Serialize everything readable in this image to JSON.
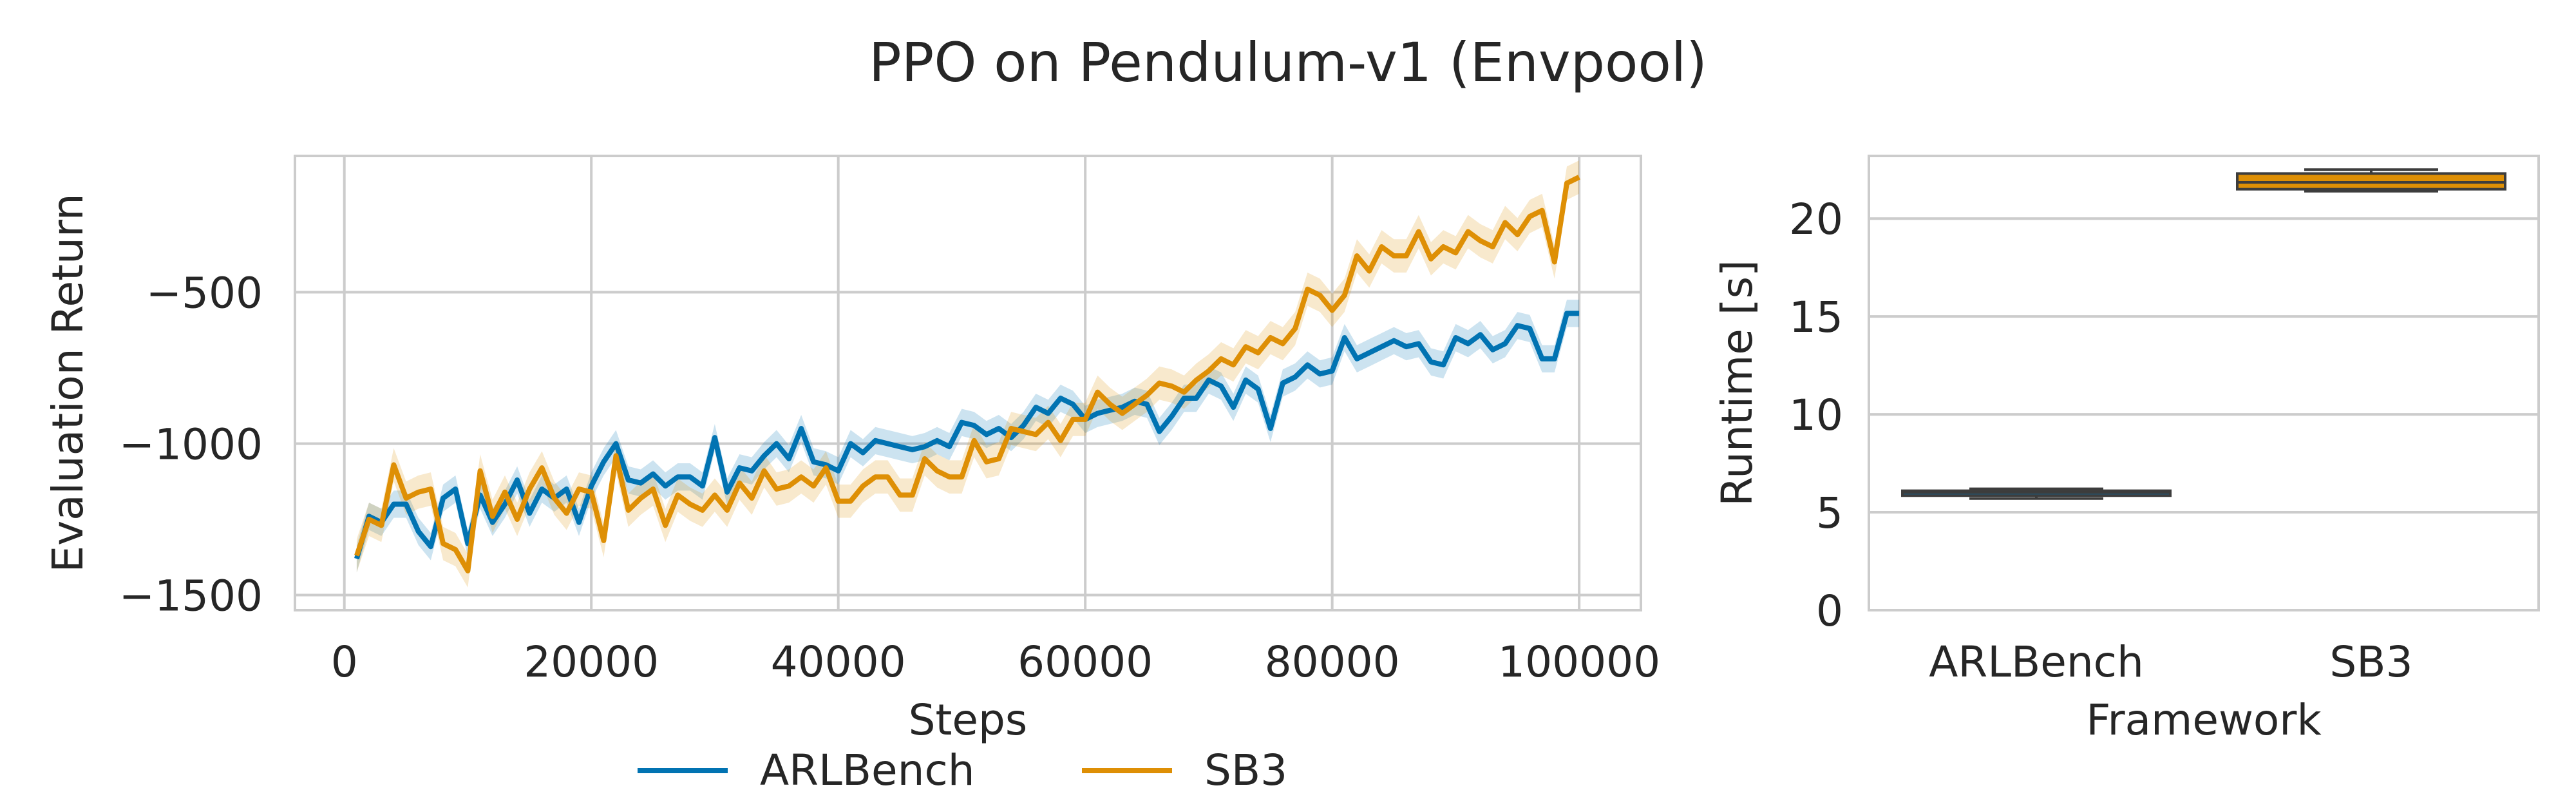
{
  "figure": {
    "title": "PPO on Pendulum-v1 (Envpool)"
  },
  "colors": {
    "ARLBench": "#0173b2",
    "SB3": "#de8f05",
    "grid": "#cccccc",
    "spine": "#cccccc",
    "text": "#262626",
    "box_edge": "#3d3d3d"
  },
  "legend": {
    "entries": [
      "ARLBench",
      "SB3"
    ],
    "placement": "bottom-center"
  },
  "chart_data": [
    {
      "type": "line",
      "xlabel": "Steps",
      "ylabel": "Evaluation Return",
      "xlim": [
        -4000,
        105000
      ],
      "ylim": [
        -1550,
        -50
      ],
      "xticks": [
        0,
        20000,
        40000,
        60000,
        80000,
        100000
      ],
      "xtick_labels": [
        "0",
        "20000",
        "40000",
        "60000",
        "80000",
        "100000"
      ],
      "yticks": [
        -1500,
        -1000,
        -500
      ],
      "ytick_labels": [
        "−1500",
        "−1000",
        "−500"
      ],
      "grid": true,
      "series": [
        {
          "name": "ARLBench",
          "x": [
            1000,
            2000,
            3000,
            4000,
            5000,
            6000,
            7000,
            8000,
            9000,
            10000,
            11000,
            12000,
            13000,
            14000,
            15000,
            16000,
            17000,
            18000,
            19000,
            20000,
            21000,
            22000,
            23000,
            24000,
            25000,
            26000,
            27000,
            28000,
            29000,
            30000,
            31000,
            32000,
            33000,
            34000,
            35000,
            36000,
            37000,
            38000,
            39000,
            40000,
            41000,
            42000,
            43000,
            44000,
            45000,
            46000,
            47000,
            48000,
            49000,
            50000,
            51000,
            52000,
            53000,
            54000,
            55000,
            56000,
            57000,
            58000,
            59000,
            60000,
            61000,
            62000,
            63000,
            64000,
            65000,
            66000,
            67000,
            68000,
            69000,
            70000,
            71000,
            72000,
            73000,
            74000,
            75000,
            76000,
            77000,
            78000,
            79000,
            80000,
            81000,
            82000,
            83000,
            84000,
            85000,
            86000,
            87000,
            88000,
            89000,
            90000,
            91000,
            92000,
            93000,
            94000,
            95000,
            96000,
            97000,
            98000,
            99000,
            100000
          ],
          "y": [
            -1380,
            -1240,
            -1260,
            -1200,
            -1200,
            -1290,
            -1340,
            -1180,
            -1150,
            -1330,
            -1170,
            -1260,
            -1200,
            -1120,
            -1230,
            -1150,
            -1180,
            -1150,
            -1260,
            -1140,
            -1060,
            -1000,
            -1120,
            -1130,
            -1100,
            -1140,
            -1110,
            -1110,
            -1140,
            -980,
            -1160,
            -1080,
            -1090,
            -1040,
            -1000,
            -1050,
            -950,
            -1060,
            -1070,
            -1090,
            -1000,
            -1030,
            -990,
            -1000,
            -1010,
            -1020,
            -1010,
            -990,
            -1010,
            -930,
            -940,
            -970,
            -950,
            -980,
            -940,
            -880,
            -900,
            -850,
            -870,
            -920,
            -900,
            -890,
            -880,
            -860,
            -870,
            -960,
            -910,
            -850,
            -850,
            -790,
            -810,
            -880,
            -790,
            -820,
            -950,
            -800,
            -780,
            -740,
            -770,
            -760,
            -650,
            -720,
            -700,
            -680,
            -660,
            -680,
            -670,
            -730,
            -740,
            -650,
            -670,
            -640,
            -690,
            -670,
            -610,
            -620,
            -720,
            -720,
            -570,
            -570
          ],
          "band": 45
        },
        {
          "name": "SB3",
          "x": [
            1000,
            2000,
            3000,
            4000,
            5000,
            6000,
            7000,
            8000,
            9000,
            10000,
            11000,
            12000,
            13000,
            14000,
            15000,
            16000,
            17000,
            18000,
            19000,
            20000,
            21000,
            22000,
            23000,
            24000,
            25000,
            26000,
            27000,
            28000,
            29000,
            30000,
            31000,
            32000,
            33000,
            34000,
            35000,
            36000,
            37000,
            38000,
            39000,
            40000,
            41000,
            42000,
            43000,
            44000,
            45000,
            46000,
            47000,
            48000,
            49000,
            50000,
            51000,
            52000,
            53000,
            54000,
            55000,
            56000,
            57000,
            58000,
            59000,
            60000,
            61000,
            62000,
            63000,
            64000,
            65000,
            66000,
            67000,
            68000,
            69000,
            70000,
            71000,
            72000,
            73000,
            74000,
            75000,
            76000,
            77000,
            78000,
            79000,
            80000,
            81000,
            82000,
            83000,
            84000,
            85000,
            86000,
            87000,
            88000,
            89000,
            90000,
            91000,
            92000,
            93000,
            94000,
            95000,
            96000,
            97000,
            98000,
            99000,
            100000
          ],
          "y": [
            -1370,
            -1250,
            -1270,
            -1070,
            -1180,
            -1160,
            -1150,
            -1330,
            -1350,
            -1420,
            -1090,
            -1240,
            -1160,
            -1250,
            -1150,
            -1080,
            -1180,
            -1230,
            -1150,
            -1160,
            -1320,
            -1040,
            -1220,
            -1180,
            -1150,
            -1270,
            -1170,
            -1200,
            -1220,
            -1170,
            -1220,
            -1130,
            -1180,
            -1090,
            -1150,
            -1140,
            -1110,
            -1140,
            -1080,
            -1190,
            -1190,
            -1140,
            -1110,
            -1110,
            -1170,
            -1170,
            -1050,
            -1090,
            -1110,
            -1110,
            -990,
            -1060,
            -1050,
            -950,
            -960,
            -970,
            -930,
            -990,
            -920,
            -920,
            -830,
            -870,
            -900,
            -870,
            -840,
            -800,
            -810,
            -830,
            -790,
            -760,
            -720,
            -740,
            -680,
            -700,
            -650,
            -670,
            -620,
            -490,
            -510,
            -560,
            -510,
            -380,
            -430,
            -350,
            -380,
            -380,
            -300,
            -390,
            -350,
            -370,
            -300,
            -330,
            -350,
            -270,
            -310,
            -250,
            -230,
            -400,
            -140,
            -120
          ],
          "band": 55
        }
      ]
    },
    {
      "type": "box",
      "xlabel": "Framework",
      "ylabel": "Runtime [s]",
      "ylim": [
        0,
        23.2
      ],
      "yticks": [
        0,
        5,
        10,
        15,
        20
      ],
      "ytick_labels": [
        "0",
        "5",
        "10",
        "15",
        "20"
      ],
      "grid": true,
      "categories": [
        "ARLBench",
        "SB3"
      ],
      "boxes": [
        {
          "name": "ARLBench",
          "min": 5.7,
          "q1": 5.85,
          "median": 6.0,
          "q3": 6.1,
          "max": 6.2
        },
        {
          "name": "SB3",
          "min": 21.4,
          "q1": 21.5,
          "median": 21.85,
          "q3": 22.3,
          "max": 22.5
        }
      ]
    }
  ]
}
